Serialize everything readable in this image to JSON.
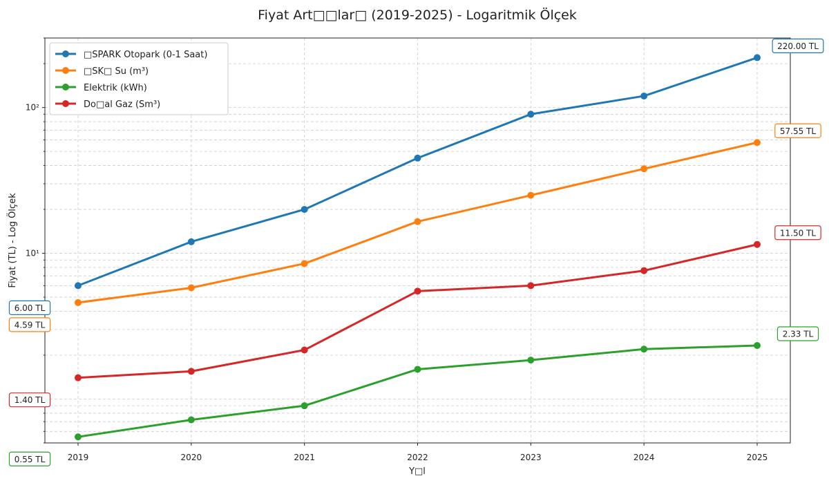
{
  "chart_data": {
    "type": "line",
    "title": "Fiyat Art□□lar□ (2019-2025) - Logaritmik Ölçek",
    "xlabel": "Y□l",
    "ylabel": "Fiyat (TL) - Log Ölçek",
    "yscale": "log",
    "ylim": [
      0.5,
      300
    ],
    "grid": true,
    "legend_position": "top-left",
    "categories": [
      "2019",
      "2020",
      "2021",
      "2022",
      "2023",
      "2024",
      "2025"
    ],
    "y_ticks": [
      {
        "value": 10,
        "label": "10¹"
      },
      {
        "value": 100,
        "label": "10²"
      }
    ],
    "series": [
      {
        "name": "□SPARK Otopark (0-1 Saat)",
        "color": "#1f77b4",
        "values": [
          6.0,
          12.0,
          20.0,
          45.0,
          90.0,
          120.0,
          220.0
        ],
        "start_label": "6.00 TL",
        "end_label": "220.00 TL"
      },
      {
        "name": "□SK□ Su (m³)",
        "color": "#ff7f0e",
        "values": [
          4.59,
          5.8,
          8.5,
          16.5,
          25.0,
          38.0,
          57.55
        ],
        "start_label": "4.59 TL",
        "end_label": "57.55 TL"
      },
      {
        "name": "Elektrik (kWh)",
        "color": "#2ca02c",
        "values": [
          0.55,
          0.72,
          0.9,
          1.6,
          1.85,
          2.2,
          2.33
        ],
        "start_label": "0.55 TL",
        "end_label": "2.33 TL"
      },
      {
        "name": "Do□al Gaz (Sm³)",
        "color": "#d62728",
        "values": [
          1.4,
          1.55,
          2.17,
          5.5,
          6.0,
          7.6,
          11.5
        ],
        "start_label": "1.40 TL",
        "end_label": "11.50 TL"
      }
    ]
  }
}
